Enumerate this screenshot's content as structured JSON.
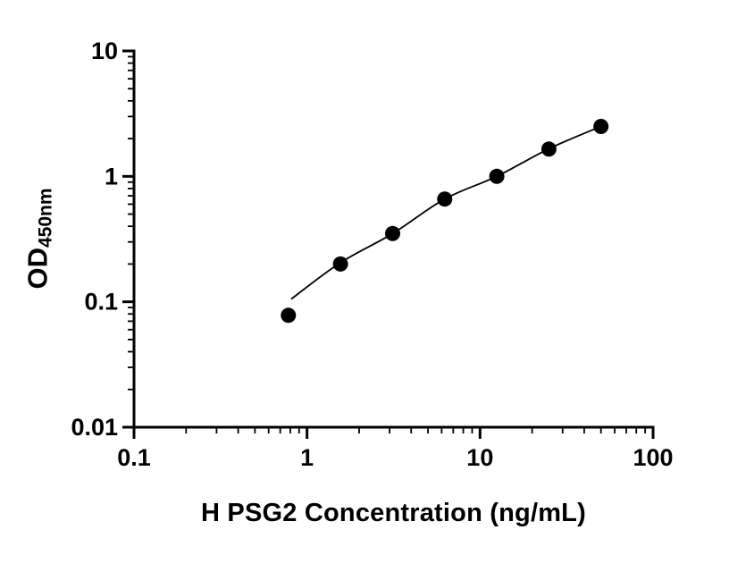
{
  "chart_data": {
    "type": "scatter",
    "title": "",
    "xlabel": "H PSG2 Concentration (ng/mL)",
    "ylabel_main": "OD",
    "ylabel_sub": "450nm",
    "x_scale": "log",
    "y_scale": "log",
    "xlim": [
      0.1,
      100
    ],
    "ylim": [
      0.01,
      10
    ],
    "x_ticks": [
      0.1,
      1,
      10,
      100
    ],
    "x_tick_labels": [
      "0.1",
      "1",
      "10",
      "100"
    ],
    "y_ticks": [
      0.01,
      0.1,
      1,
      10
    ],
    "y_tick_labels": [
      "0.01",
      "0.1",
      "1",
      "10"
    ],
    "grid": "off",
    "legend": "none",
    "series": [
      {
        "x": [
          0.78,
          1.56,
          3.125,
          6.25,
          12.5,
          25,
          50
        ],
        "y": [
          0.078,
          0.2,
          0.35,
          0.66,
          1.0,
          1.65,
          2.5
        ],
        "marker": "circle"
      }
    ],
    "fit_curve": {
      "x": [
        0.81,
        1.56,
        3.125,
        6.25,
        12.5,
        25,
        50
      ],
      "y": [
        0.105,
        0.205,
        0.35,
        0.66,
        1.0,
        1.66,
        2.5
      ]
    },
    "colors": {
      "axis": "#000000",
      "marker": "#000000",
      "curve": "#000000",
      "background": "#ffffff"
    }
  }
}
